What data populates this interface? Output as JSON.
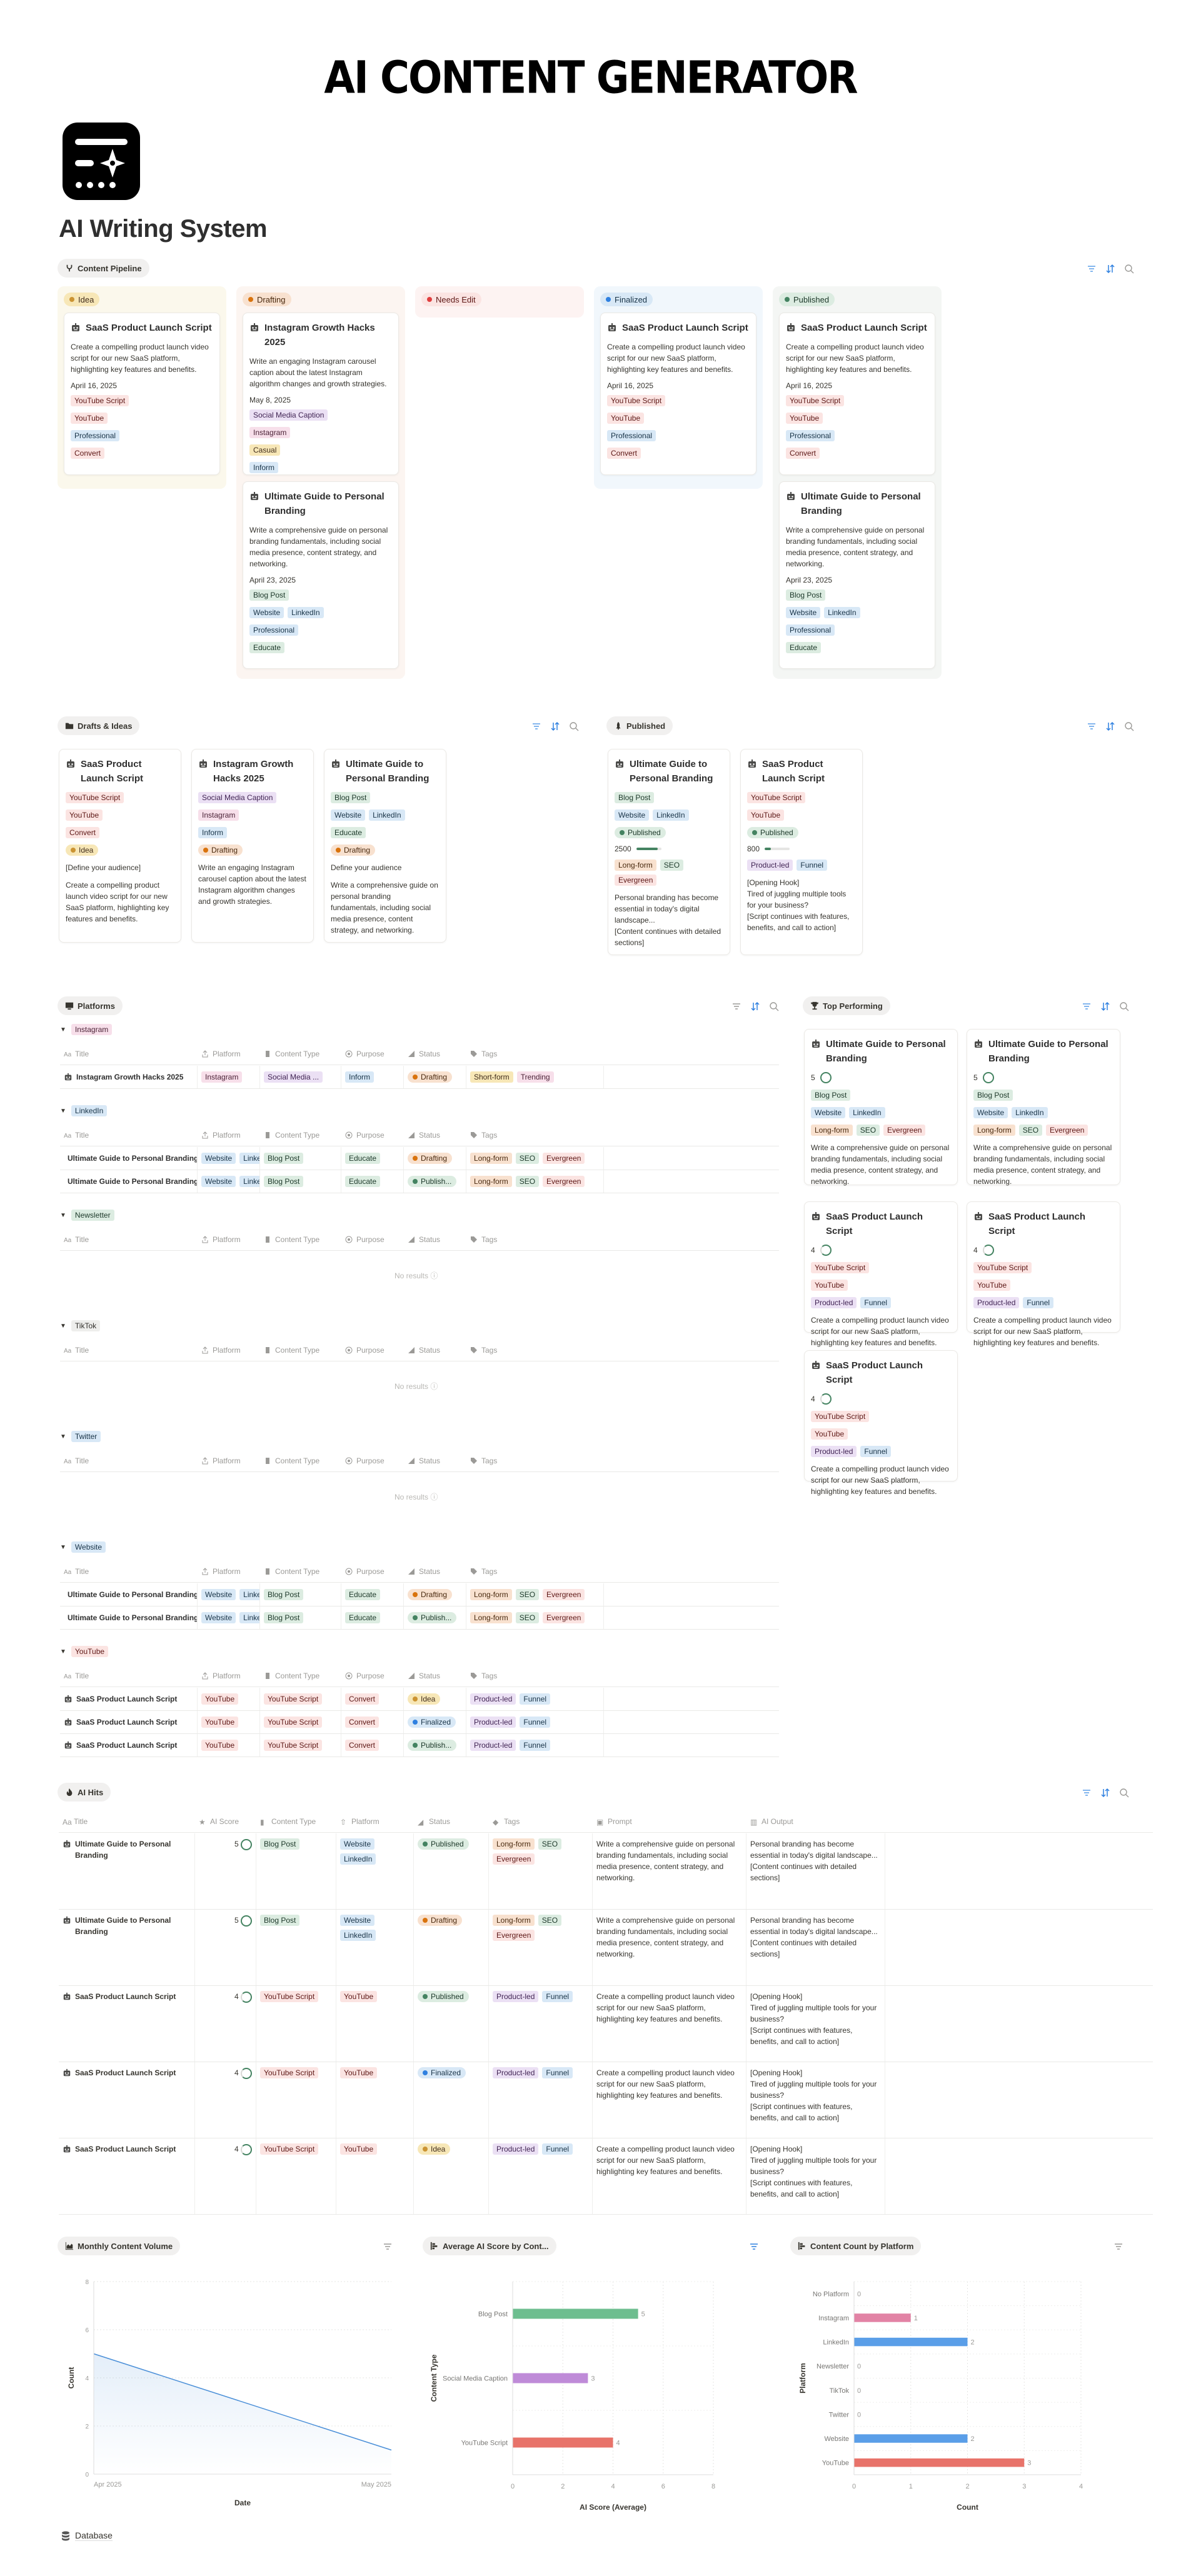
{
  "header": {
    "banner_title": "AI CONTENT GENERATOR",
    "page_title": "AI Writing System",
    "icon": "ai-writing-logo-icon"
  },
  "toolbar_icons": [
    "filter-icon",
    "sort-icon",
    "search-icon"
  ],
  "pipeline": {
    "view_label": "Content Pipeline",
    "view_icon": "pipeline-icon",
    "columns": [
      {
        "label": "Idea",
        "color": "#cb9433",
        "bg": "#fbf8ec",
        "cards": [
          {
            "title": "SaaS Product Launch Script",
            "desc": "Create a compelling product launch video script for our new SaaS platform, highlighting key features and benefits.",
            "date": "April 16, 2025",
            "tags": [
              [
                "YouTube Script"
              ],
              [
                "YouTube"
              ],
              [
                "Professional"
              ],
              [
                "Convert"
              ]
            ]
          }
        ]
      },
      {
        "label": "Drafting",
        "color": "#d9730d",
        "bg": "#fcf5f1",
        "cards": [
          {
            "title": "Instagram Growth Hacks 2025",
            "desc": "Write an engaging Instagram carousel caption about the latest Instagram algorithm changes and growth strategies.",
            "date": "May 8, 2025",
            "tags": [
              [
                "Social Media Caption"
              ],
              [
                "Instagram"
              ],
              [
                "Casual"
              ],
              [
                "Inform"
              ]
            ]
          },
          {
            "title": "Ultimate Guide to Personal Branding",
            "desc": "Write a comprehensive guide on personal branding fundamentals, including social media presence, content strategy, and networking.",
            "date": "April 23, 2025",
            "tags": [
              [
                "Blog Post"
              ],
              [
                "Website",
                "LinkedIn"
              ],
              [
                "Professional"
              ],
              [
                "Educate"
              ]
            ]
          }
        ]
      },
      {
        "label": "Needs Edit",
        "color": "#e03e3e",
        "bg": "#fdf3f2",
        "cards": []
      },
      {
        "label": "Finalized",
        "color": "#2f80e0",
        "bg": "#f1f7fc",
        "cards": [
          {
            "title": "SaaS Product Launch Script",
            "desc": "Create a compelling product launch video script for our new SaaS platform, highlighting key features and benefits.",
            "date": "April 16, 2025",
            "tags": [
              [
                "YouTube Script"
              ],
              [
                "YouTube"
              ],
              [
                "Professional"
              ],
              [
                "Convert"
              ]
            ]
          }
        ]
      },
      {
        "label": "Published",
        "color": "#448361",
        "bg": "#f4f6f4",
        "cards": [
          {
            "title": "SaaS Product Launch Script",
            "desc": "Create a compelling product launch video script for our new SaaS platform, highlighting key features and benefits.",
            "date": "April 16, 2025",
            "tags": [
              [
                "YouTube Script"
              ],
              [
                "YouTube"
              ],
              [
                "Professional"
              ],
              [
                "Convert"
              ]
            ]
          },
          {
            "title": "Ultimate Guide to Personal Branding",
            "desc": "Write a comprehensive guide on personal branding fundamentals, including social media presence, content strategy, and networking.",
            "date": "April 23, 2025",
            "tags": [
              [
                "Blog Post"
              ],
              [
                "Website",
                "LinkedIn"
              ],
              [
                "Professional"
              ],
              [
                "Educate"
              ]
            ]
          }
        ]
      }
    ]
  },
  "drafts": {
    "view_label": "Drafts & Ideas",
    "cards": [
      {
        "title": "SaaS Product Launch Script",
        "type": "YouTube Script",
        "platforms": [
          "YouTube"
        ],
        "purpose": "Convert",
        "status": "Idea",
        "audience": "[Define your audience]",
        "prompt": "Create a compelling product launch video script for our new SaaS platform, highlighting key features and benefits."
      },
      {
        "title": "Instagram Growth Hacks 2025",
        "type": "Social Media Caption",
        "platforms": [
          "Instagram"
        ],
        "purpose": "Inform",
        "status": "Drafting",
        "audience": "",
        "prompt": "Write an engaging Instagram carousel caption about the latest Instagram algorithm changes and growth strategies."
      },
      {
        "title": "Ultimate Guide to Personal Branding",
        "type": "Blog Post",
        "platforms": [
          "Website",
          "LinkedIn"
        ],
        "purpose": "Educate",
        "status": "Drafting",
        "audience": "Define your audience",
        "prompt": "Write a comprehensive guide on personal branding fundamentals, including social media presence, content strategy, and networking."
      }
    ]
  },
  "published": {
    "view_label": "Published",
    "cards": [
      {
        "title": "Ultimate Guide to Personal Branding",
        "type": "Blog Post",
        "platforms": [
          "Website",
          "LinkedIn"
        ],
        "status": "Published",
        "words": "2500",
        "progress": 85,
        "tags": [
          "Long-form",
          "SEO",
          "Evergreen"
        ],
        "output": "Personal branding has become essential in today's digital landscape...\n[Content continues with detailed sections]"
      },
      {
        "title": "SaaS Product Launch Script",
        "type": "YouTube Script",
        "platforms": [
          "YouTube"
        ],
        "status": "Published",
        "words": "800",
        "progress": 25,
        "tags": [
          "Product-led",
          "Funnel"
        ],
        "output": "[Opening Hook]\nTired of juggling multiple tools for your business?\n[Script continues with features, benefits, and call to action]"
      }
    ]
  },
  "platforms": {
    "view_label": "Platforms",
    "columns": [
      "Title",
      "Platform",
      "Content Type",
      "Purpose",
      "Status",
      "Tags"
    ],
    "no_results": "No results",
    "groups": [
      {
        "name": "Instagram",
        "rows": [
          {
            "title": "Instagram Growth Hacks 2025",
            "platform": [
              "Instagram"
            ],
            "type": "Social Media ...",
            "purpose": "Inform",
            "status": "Drafting",
            "tags": [
              "Short-form",
              "Trending"
            ]
          }
        ]
      },
      {
        "name": "LinkedIn",
        "rows": [
          {
            "title": "Ultimate Guide to Personal Branding",
            "platform": [
              "Website",
              "LinkedIn"
            ],
            "type": "Blog Post",
            "purpose": "Educate",
            "status": "Drafting",
            "tags": [
              "Long-form",
              "SEO",
              "Evergreen"
            ]
          },
          {
            "title": "Ultimate Guide to Personal Branding",
            "platform": [
              "Website",
              "LinkedIn"
            ],
            "type": "Blog Post",
            "purpose": "Educate",
            "status": "Publish...",
            "tags": [
              "Long-form",
              "SEO",
              "Evergreen"
            ]
          }
        ]
      },
      {
        "name": "Newsletter",
        "rows": []
      },
      {
        "name": "TikTok",
        "rows": []
      },
      {
        "name": "Twitter",
        "rows": []
      },
      {
        "name": "Website",
        "rows": [
          {
            "title": "Ultimate Guide to Personal Branding",
            "platform": [
              "Website",
              "LinkedIn"
            ],
            "type": "Blog Post",
            "purpose": "Educate",
            "status": "Drafting",
            "tags": [
              "Long-form",
              "SEO",
              "Evergreen"
            ]
          },
          {
            "title": "Ultimate Guide to Personal Branding",
            "platform": [
              "Website",
              "LinkedIn"
            ],
            "type": "Blog Post",
            "purpose": "Educate",
            "status": "Publish...",
            "tags": [
              "Long-form",
              "SEO",
              "Evergreen"
            ]
          }
        ]
      },
      {
        "name": "YouTube",
        "rows": [
          {
            "title": "SaaS Product Launch Script",
            "platform": [
              "YouTube"
            ],
            "type": "YouTube Script",
            "purpose": "Convert",
            "status": "Idea",
            "tags": [
              "Product-led",
              "Funnel"
            ]
          },
          {
            "title": "SaaS Product Launch Script",
            "platform": [
              "YouTube"
            ],
            "type": "YouTube Script",
            "purpose": "Convert",
            "status": "Finalized",
            "tags": [
              "Product-led",
              "Funnel"
            ]
          },
          {
            "title": "SaaS Product Launch Script",
            "platform": [
              "YouTube"
            ],
            "type": "YouTube Script",
            "purpose": "Convert",
            "status": "Publish...",
            "tags": [
              "Product-led",
              "Funnel"
            ]
          }
        ]
      }
    ]
  },
  "top_performing": {
    "view_label": "Top Performing",
    "cards": [
      {
        "title": "Ultimate Guide to Personal Branding",
        "score": "5",
        "type": "Blog Post",
        "platforms": [
          "Website",
          "LinkedIn"
        ],
        "tags": [
          "Long-form",
          "SEO",
          "Evergreen"
        ],
        "prompt": "Write a comprehensive guide on personal branding fundamentals, including social media presence, content strategy, and networking."
      },
      {
        "title": "Ultimate Guide to Personal Branding",
        "score": "5",
        "type": "Blog Post",
        "platforms": [
          "Website",
          "LinkedIn"
        ],
        "tags": [
          "Long-form",
          "SEO",
          "Evergreen"
        ],
        "prompt": "Write a comprehensive guide on personal branding fundamentals, including social media presence, content strategy, and networking."
      },
      {
        "title": "SaaS Product Launch Script",
        "score": "4",
        "type": "YouTube Script",
        "platforms": [
          "YouTube"
        ],
        "tags": [
          "Product-led",
          "Funnel"
        ],
        "prompt": "Create a compelling product launch video script for our new SaaS platform, highlighting key features and benefits."
      },
      {
        "title": "SaaS Product Launch Script",
        "score": "4",
        "type": "YouTube Script",
        "platforms": [
          "YouTube"
        ],
        "tags": [
          "Product-led",
          "Funnel"
        ],
        "prompt": "Create a compelling product launch video script for our new SaaS platform, highlighting key features and benefits."
      },
      {
        "title": "SaaS Product Launch Script",
        "score": "4",
        "type": "YouTube Script",
        "platforms": [
          "YouTube"
        ],
        "tags": [
          "Product-led",
          "Funnel"
        ],
        "prompt": "Create a compelling product launch video script for our new SaaS platform, highlighting key features and benefits."
      }
    ]
  },
  "ai_hits": {
    "view_label": "AI Hits",
    "columns": [
      "Title",
      "AI Score",
      "Content Type",
      "Platform",
      "Status",
      "Tags",
      "Prompt",
      "AI Output"
    ],
    "rows": [
      {
        "title": "Ultimate Guide to Personal Branding",
        "score": "5",
        "type": "Blog Post",
        "platforms": [
          "Website",
          "LinkedIn"
        ],
        "status": "Published",
        "tags": [
          "Long-form",
          "SEO",
          "Evergreen"
        ],
        "prompt": "Write a comprehensive guide on personal branding fundamentals, including social media presence, content strategy, and networking.",
        "output": "Personal branding has become essential in today's digital landscape...\n[Content continues with detailed sections]"
      },
      {
        "title": "Ultimate Guide to Personal Branding",
        "score": "5",
        "type": "Blog Post",
        "platforms": [
          "Website",
          "LinkedIn"
        ],
        "status": "Drafting",
        "tags": [
          "Long-form",
          "SEO",
          "Evergreen"
        ],
        "prompt": "Write a comprehensive guide on personal branding fundamentals, including social media presence, content strategy, and networking.",
        "output": "Personal branding has become essential in today's digital landscape...\n[Content continues with detailed sections]"
      },
      {
        "title": "SaaS Product Launch Script",
        "score": "4",
        "type": "YouTube Script",
        "platforms": [
          "YouTube"
        ],
        "status": "Published",
        "tags": [
          "Product-led",
          "Funnel"
        ],
        "prompt": "Create a compelling product launch video script for our new SaaS platform, highlighting key features and benefits.",
        "output": "[Opening Hook]\nTired of juggling multiple tools for your business?\n[Script continues with features, benefits, and call to action]"
      },
      {
        "title": "SaaS Product Launch Script",
        "score": "4",
        "type": "YouTube Script",
        "platforms": [
          "YouTube"
        ],
        "status": "Finalized",
        "tags": [
          "Product-led",
          "Funnel"
        ],
        "prompt": "Create a compelling product launch video script for our new SaaS platform, highlighting key features and benefits.",
        "output": "[Opening Hook]\nTired of juggling multiple tools for your business?\n[Script continues with features, benefits, and call to action]"
      },
      {
        "title": "SaaS Product Launch Script",
        "score": "4",
        "type": "YouTube Script",
        "platforms": [
          "YouTube"
        ],
        "status": "Idea",
        "tags": [
          "Product-led",
          "Funnel"
        ],
        "prompt": "Create a compelling product launch video script for our new SaaS platform, highlighting key features and benefits.",
        "output": "[Opening Hook]\nTired of juggling multiple tools for your business?\n[Script continues with features, benefits, and call to action]"
      }
    ]
  },
  "charts": {
    "monthly": {
      "view_label": "Monthly Content Volume"
    },
    "avg_score": {
      "view_label": "Average AI Score by Cont..."
    },
    "platform_count": {
      "view_label": "Content Count by Platform"
    }
  },
  "chart_data": [
    {
      "type": "area",
      "title": "Monthly Content Volume",
      "x": [
        "Apr 2025",
        "May 2025"
      ],
      "series": [
        {
          "name": "Date",
          "values": [
            5,
            1
          ],
          "color": "#4a8fd8"
        }
      ],
      "xlabel": "Date",
      "ylabel": "Count",
      "ylim": [
        0,
        8
      ],
      "yticks": [
        0,
        2,
        4,
        6,
        8
      ],
      "grid": true,
      "legend": "bottom"
    },
    {
      "type": "bar",
      "orientation": "horizontal",
      "title": "Average AI Score by Content Type",
      "categories": [
        "Blog Post",
        "Social Media Caption",
        "YouTube Script"
      ],
      "values": [
        5,
        3,
        4
      ],
      "colors": [
        "#6dbe8f",
        "#bf8bd8",
        "#e8736a"
      ],
      "xlabel": "AI Score (Average)",
      "ylabel": "Content Type",
      "xlim": [
        0,
        8
      ],
      "xticks": [
        0,
        2,
        4,
        6,
        8
      ],
      "grid": true
    },
    {
      "type": "bar",
      "orientation": "horizontal",
      "title": "Content Count by Platform",
      "categories": [
        "No Platform",
        "Instagram",
        "LinkedIn",
        "Newsletter",
        "TikTok",
        "Twitter",
        "Website",
        "YouTube"
      ],
      "values": [
        0,
        1,
        2,
        0,
        0,
        0,
        2,
        3
      ],
      "colors": [
        "#999999",
        "#e283a5",
        "#5a9ee8",
        "#999999",
        "#999999",
        "#999999",
        "#5a9ee8",
        "#e8736a"
      ],
      "xlabel": "Count",
      "ylabel": "Platform",
      "xlim": [
        0,
        4
      ],
      "xticks": [
        0,
        1,
        2,
        3,
        4
      ],
      "grid": true
    }
  ],
  "footer": {
    "database_label": "Database"
  }
}
